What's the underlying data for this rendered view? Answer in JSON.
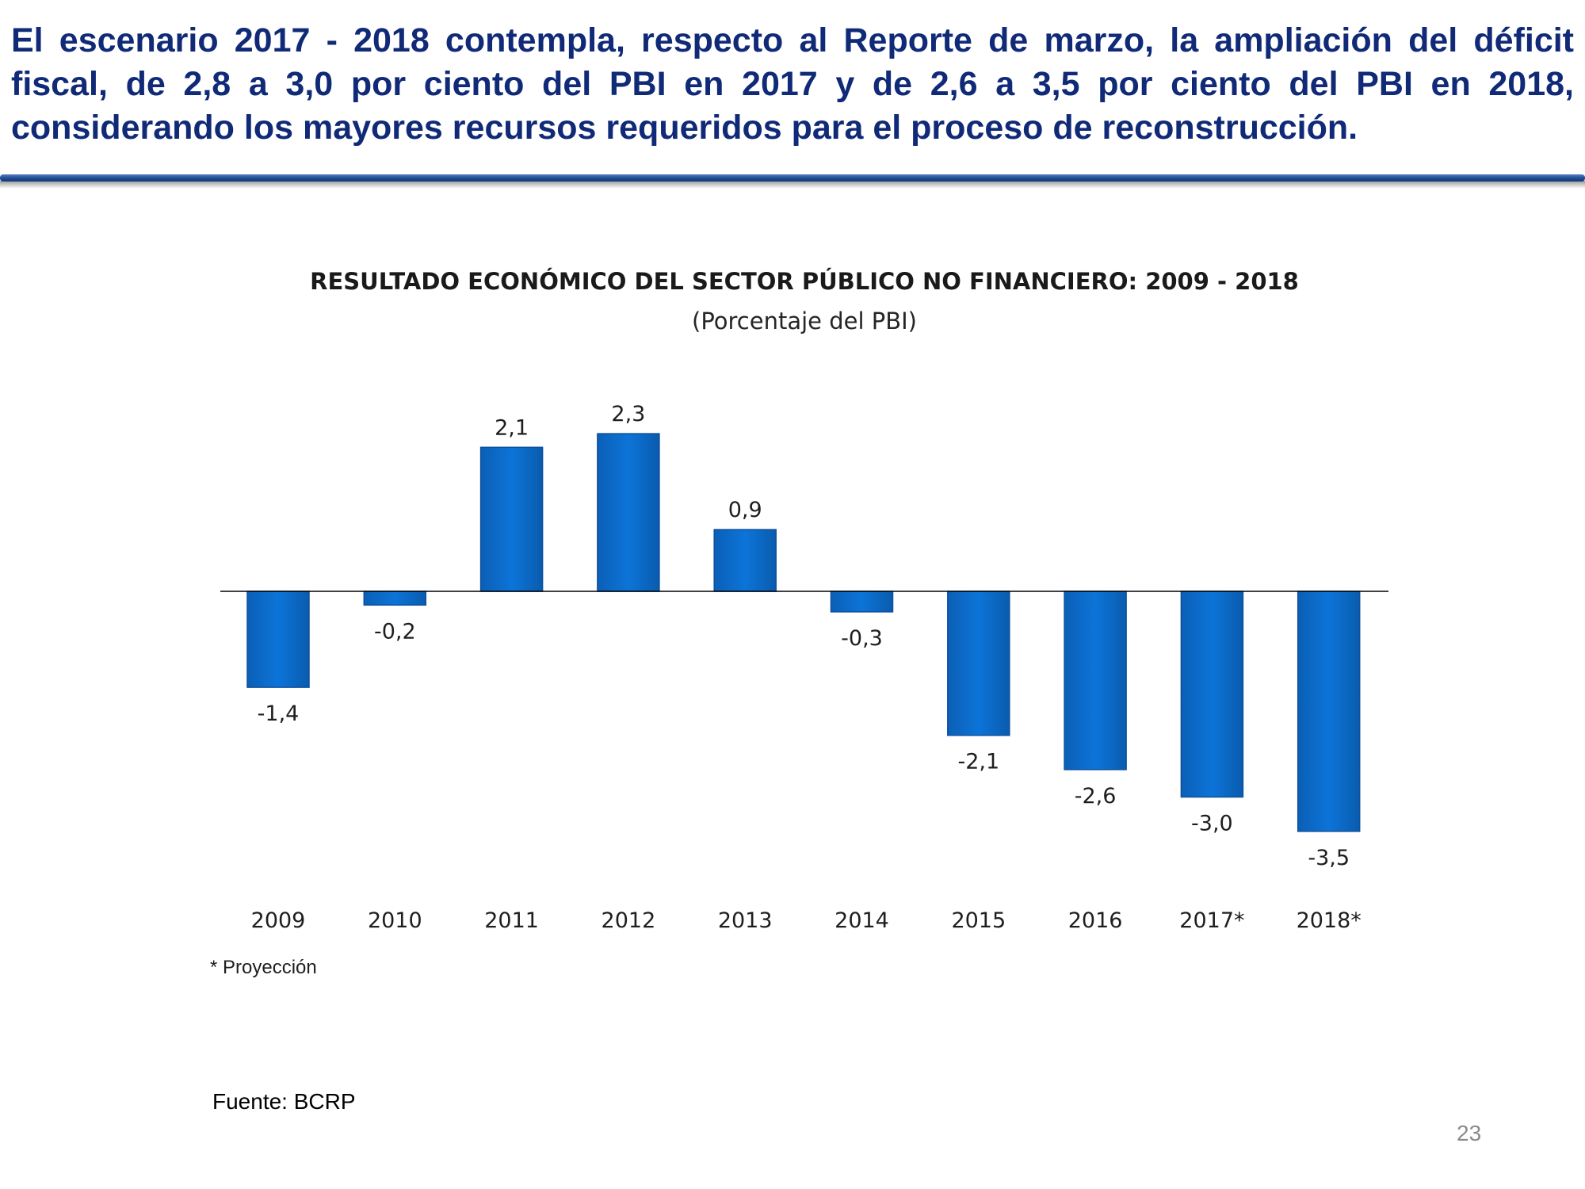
{
  "slide": {
    "headline": "El escenario 2017 - 2018 contempla, respecto al Reporte de marzo, la ampliación del déficit fiscal, de 2,8 a 3,0 por ciento del PBI en 2017 y de 2,6 a 3,5 por ciento del PBI en 2018, considerando los mayores recursos requeridos para el proceso de reconstrucción.",
    "source": "Fuente: BCRP",
    "page_number": "23",
    "colors": {
      "headline": "#102a78",
      "rule": "#1f4f9a",
      "bar": "#0a6fd0",
      "bar_edge": "#0d4f9c"
    }
  },
  "chart_data": {
    "type": "bar",
    "title": "RESULTADO ECONÓMICO DEL SECTOR PÚBLICO NO FINANCIERO:  2009 - 2018",
    "subtitle": "(Porcentaje del PBI)",
    "xlabel": "",
    "ylabel": "",
    "categories": [
      "2009",
      "2010",
      "2011",
      "2012",
      "2013",
      "2014",
      "2015",
      "2016",
      "2017*",
      "2018*"
    ],
    "values": [
      -1.4,
      -0.2,
      2.1,
      2.3,
      0.9,
      -0.3,
      -2.1,
      -2.6,
      -3.0,
      -3.5
    ],
    "value_labels": [
      "-1,4",
      "-0,2",
      "2,1",
      "2,3",
      "0,9",
      "-0,3",
      "-2,1",
      "-2,6",
      "-3,0",
      "-3,5"
    ],
    "ylim": [
      -3.5,
      2.3
    ],
    "grid": false,
    "legend": "none",
    "footnote": "* Proyección"
  }
}
